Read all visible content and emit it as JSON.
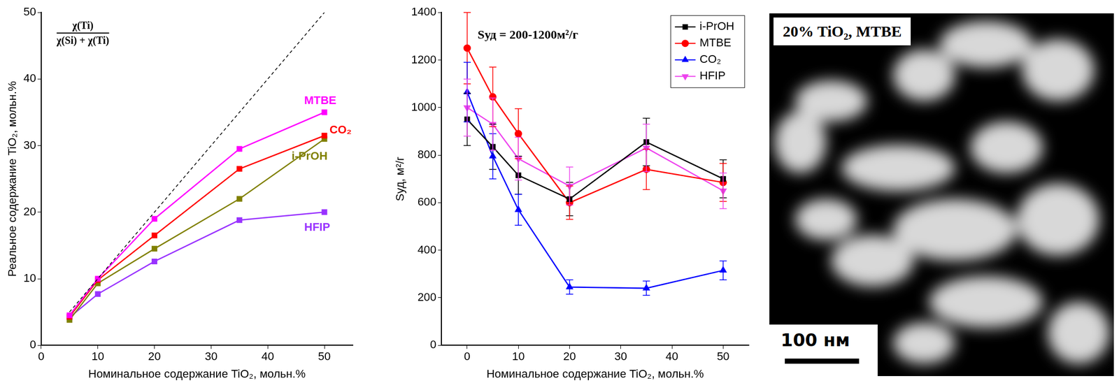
{
  "chart_data": [
    {
      "type": "line",
      "formula": {
        "numerator": "χ(Ti)",
        "denominator": "χ(Si) + χ(Ti)"
      },
      "x_label": "Номинальное содержание TiO₂, мольн.%",
      "y_label": "Реальное содержание TiO₂, мольн.%",
      "x": [
        5,
        10,
        20,
        35,
        50
      ],
      "series": [
        {
          "name": "MTBE",
          "color": "#ff00ff",
          "marker": "square",
          "values": [
            4.5,
            10,
            19,
            29.5,
            35
          ]
        },
        {
          "name": "CO₂",
          "color": "#ff0000",
          "marker": "square",
          "values": [
            4.3,
            9.8,
            16.5,
            26.5,
            31.5
          ]
        },
        {
          "name": "i-PrOH",
          "color": "#808000",
          "marker": "square",
          "values": [
            3.8,
            9.3,
            14.5,
            22,
            31
          ]
        },
        {
          "name": "HFIP",
          "color": "#9933ff",
          "marker": "square",
          "values": [
            4.2,
            7.7,
            12.6,
            18.8,
            20
          ]
        }
      ],
      "reference": {
        "x": [
          5,
          50
        ],
        "values": [
          5,
          50
        ],
        "color": "#000000",
        "line_style": "dashed"
      },
      "xlim": [
        0,
        55
      ],
      "xticks": [
        0,
        10,
        20,
        30,
        40,
        50
      ],
      "ylim": [
        0,
        50
      ],
      "yticks": [
        0,
        10,
        20,
        30,
        40,
        50
      ],
      "grid": false
    },
    {
      "type": "line",
      "annotation": "Sуд = 200-1200м²/г",
      "x_label": "Номинальное содержание TiO₂, мольн.%",
      "y_label": "Sуд, м²/г",
      "x": [
        0,
        5,
        10,
        20,
        35,
        50
      ],
      "series": [
        {
          "name": "i-PrOH",
          "color": "#000000",
          "marker": "square",
          "values": [
            950,
            835,
            715,
            615,
            855,
            700
          ],
          "errors": [
            110,
            95,
            80,
            70,
            100,
            80
          ]
        },
        {
          "name": "MTBE",
          "color": "#ff0000",
          "marker": "circle",
          "values": [
            1250,
            1045,
            890,
            600,
            740,
            685
          ],
          "errors": [
            150,
            125,
            105,
            70,
            85,
            80
          ]
        },
        {
          "name": "CO₂",
          "color": "#0000ff",
          "marker": "triangle",
          "values": [
            1065,
            795,
            570,
            245,
            240,
            315
          ],
          "errors": [
            125,
            95,
            65,
            30,
            30,
            40
          ]
        },
        {
          "name": "HFIP",
          "color": "#ee44ee",
          "marker": "triangle_down",
          "values": [
            1000,
            930,
            785,
            670,
            830,
            650
          ],
          "errors": [
            120,
            110,
            90,
            80,
            100,
            75
          ]
        }
      ],
      "xlim": [
        -5,
        55
      ],
      "xticks": [
        0,
        10,
        20,
        30,
        40,
        50
      ],
      "ylim": [
        0,
        1400
      ],
      "yticks": [
        0,
        200,
        400,
        600,
        800,
        1000,
        1200,
        1400
      ],
      "legend": "top-right",
      "grid": false
    }
  ],
  "image_panel": {
    "label": "20% TiO₂, MTBE",
    "scale_bar": "100 нм"
  }
}
